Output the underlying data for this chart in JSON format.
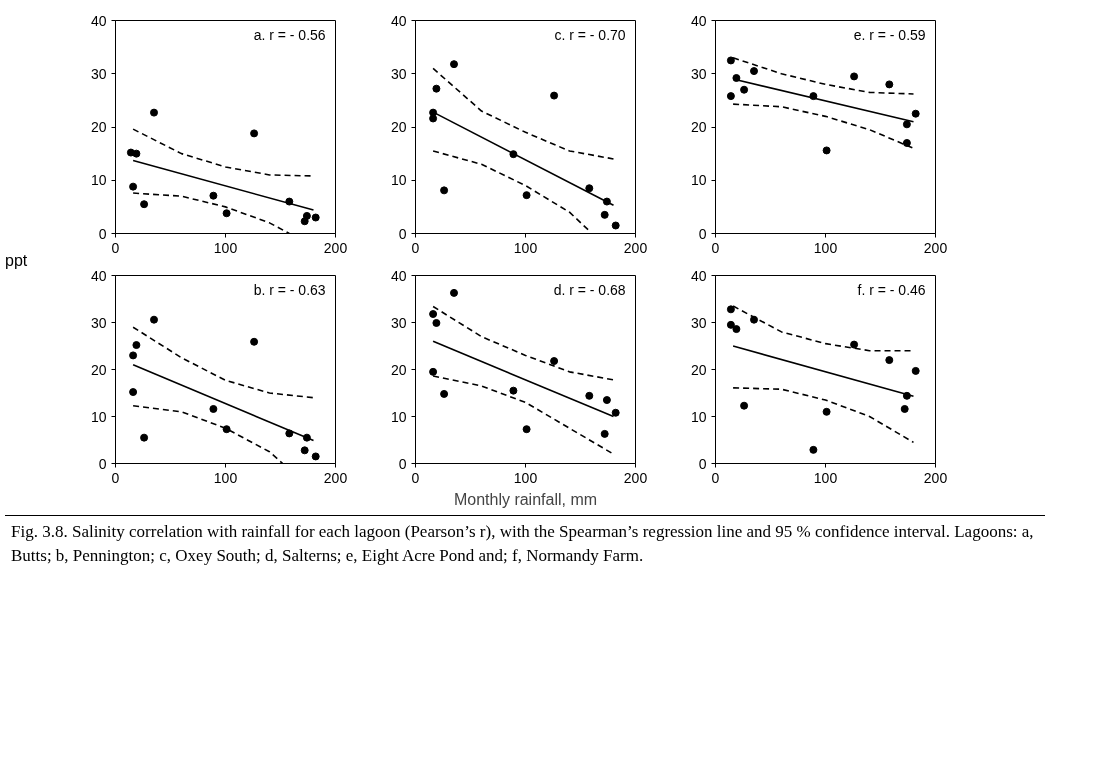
{
  "chart_data": [
    {
      "type": "scatter",
      "ylabel": "ppt",
      "annotations": [
        "a.  r = - 0.56",
        "Fig. 3.8.  Salinity correlation with rainfall for each lagoon (Pearson’s r), with the Spearman’s regression line and 95 % confidence interval.  Lagoons:  a, Butts; b, Pennington; c, Oxey South; d, Salterns; e, Eight Acre Pond and; f, Normandy Farm."
      ],
      "xlim": [
        0,
        200
      ],
      "xticks": [
        0,
        100,
        200
      ],
      "ylim": [
        0,
        40
      ],
      "yticks": [
        0,
        10,
        20,
        30,
        40
      ],
      "grid": false,
      "x": [
        14,
        19,
        16,
        26,
        35,
        89,
        101,
        126,
        158,
        174,
        172,
        182
      ],
      "series": [
        {
          "marker": "circle",
          "color": "#000000",
          "values": [
            15.2,
            15,
            8.8,
            5.5,
            22.7,
            7.1,
            3.8,
            18.8,
            6,
            3.3,
            2.3,
            3
          ]
        },
        {
          "type": "line",
          "color": "#000000",
          "line_style": "solid",
          "x": [
            16,
            180
          ],
          "values": [
            13.7,
            4.4
          ]
        },
        {
          "type": "line",
          "color": "#000000",
          "line_style": "dashed",
          "x": [
            16,
            60,
            100,
            140,
            180
          ],
          "values": [
            19.6,
            15,
            12.5,
            11,
            10.8
          ]
        },
        {
          "type": "line",
          "color": "#000000",
          "line_style": "dashed",
          "x": [
            16,
            60,
            100,
            140,
            158
          ],
          "values": [
            7.6,
            7,
            5,
            2,
            0
          ]
        }
      ]
    },
    {
      "type": "scatter",
      "annotations": [
        "c.  r = - 0.70"
      ],
      "xlim": [
        0,
        200
      ],
      "xticks": [
        0,
        100,
        200
      ],
      "ylim": [
        0,
        40
      ],
      "yticks": [
        0,
        10,
        20,
        30,
        40
      ],
      "grid": false,
      "x": [
        16,
        16,
        19,
        26,
        35,
        89,
        101,
        126,
        158,
        174,
        172,
        182
      ],
      "series": [
        {
          "marker": "circle",
          "color": "#000000",
          "values": [
            22.7,
            21.6,
            27.2,
            8.1,
            31.8,
            14.9,
            7.2,
            25.9,
            8.5,
            6,
            3.5,
            1.5
          ]
        },
        {
          "type": "line",
          "color": "#000000",
          "line_style": "solid",
          "x": [
            16,
            180
          ],
          "values": [
            22.8,
            5.3
          ]
        },
        {
          "type": "line",
          "color": "#000000",
          "line_style": "dashed",
          "x": [
            16,
            60,
            100,
            140,
            180
          ],
          "values": [
            31,
            23,
            19,
            15.5,
            14
          ]
        },
        {
          "type": "line",
          "color": "#000000",
          "line_style": "dashed",
          "x": [
            16,
            60,
            100,
            140,
            158
          ],
          "values": [
            15.5,
            13,
            9,
            4,
            0.5
          ]
        }
      ]
    },
    {
      "type": "scatter",
      "annotations": [
        "e.  r = - 0.59"
      ],
      "xlim": [
        0,
        200
      ],
      "xticks": [
        0,
        100,
        200
      ],
      "ylim": [
        0,
        40
      ],
      "yticks": [
        0,
        10,
        20,
        30,
        40
      ],
      "grid": false,
      "x": [
        14,
        14,
        19,
        26,
        35,
        89,
        101,
        126,
        158,
        174,
        174,
        182
      ],
      "series": [
        {
          "marker": "circle",
          "color": "#000000",
          "values": [
            32.5,
            25.8,
            29.2,
            27,
            30.5,
            25.8,
            15.6,
            29.5,
            28,
            20.5,
            17,
            22.5
          ]
        },
        {
          "type": "line",
          "color": "#000000",
          "line_style": "solid",
          "x": [
            16,
            180
          ],
          "values": [
            29,
            21
          ]
        },
        {
          "type": "line",
          "color": "#000000",
          "line_style": "dashed",
          "x": [
            16,
            60,
            100,
            140,
            180
          ],
          "values": [
            33,
            30,
            28,
            26.5,
            26.2
          ]
        },
        {
          "type": "line",
          "color": "#000000",
          "line_style": "dashed",
          "x": [
            16,
            60,
            100,
            140,
            180
          ],
          "values": [
            24.3,
            23.8,
            22,
            19.5,
            16
          ]
        }
      ]
    },
    {
      "type": "scatter",
      "annotations": [
        "b.  r = - 0.63"
      ],
      "xlim": [
        0,
        200
      ],
      "xticks": [
        0,
        100,
        200
      ],
      "ylim": [
        0,
        40
      ],
      "yticks": [
        0,
        10,
        20,
        30,
        40
      ],
      "grid": false,
      "x": [
        16,
        19,
        16,
        26,
        35,
        89,
        101,
        126,
        158,
        174,
        172,
        182
      ],
      "series": [
        {
          "marker": "circle",
          "color": "#000000",
          "values": [
            23,
            25.2,
            15.2,
            5.5,
            30.6,
            11.6,
            7.3,
            25.9,
            6.4,
            5.5,
            2.8,
            1.5
          ]
        },
        {
          "type": "line",
          "color": "#000000",
          "line_style": "solid",
          "x": [
            16,
            180
          ],
          "values": [
            21,
            4.9
          ]
        },
        {
          "type": "line",
          "color": "#000000",
          "line_style": "dashed",
          "x": [
            16,
            60,
            100,
            140,
            180
          ],
          "values": [
            29,
            22.5,
            17.7,
            15,
            14
          ]
        },
        {
          "type": "line",
          "color": "#000000",
          "line_style": "dashed",
          "x": [
            16,
            60,
            100,
            140,
            152
          ],
          "values": [
            12.3,
            11,
            7.5,
            2.5,
            0
          ]
        }
      ]
    },
    {
      "type": "scatter",
      "xlabel": "Monthly rainfall, mm",
      "annotations": [
        "d.  r = - 0.68"
      ],
      "xlim": [
        0,
        200
      ],
      "xticks": [
        0,
        100,
        200
      ],
      "ylim": [
        0,
        40
      ],
      "yticks": [
        0,
        10,
        20,
        30,
        40
      ],
      "grid": false,
      "x": [
        16,
        19,
        16,
        26,
        35,
        89,
        101,
        126,
        158,
        174,
        172,
        182
      ],
      "series": [
        {
          "marker": "circle",
          "color": "#000000",
          "values": [
            31.8,
            29.9,
            19.5,
            14.8,
            36.3,
            15.5,
            7.3,
            21.8,
            14.4,
            13.5,
            6.3,
            10.8
          ]
        },
        {
          "type": "line",
          "color": "#000000",
          "line_style": "solid",
          "x": [
            16,
            180
          ],
          "values": [
            26,
            10
          ]
        },
        {
          "type": "line",
          "color": "#000000",
          "line_style": "dashed",
          "x": [
            16,
            60,
            100,
            140,
            180
          ],
          "values": [
            33.4,
            27,
            23,
            19.5,
            17.8
          ]
        },
        {
          "type": "line",
          "color": "#000000",
          "line_style": "dashed",
          "x": [
            16,
            60,
            100,
            140,
            180
          ],
          "values": [
            18.6,
            16.5,
            13,
            7.5,
            2
          ]
        }
      ]
    },
    {
      "type": "scatter",
      "annotations": [
        "f.  r = - 0.46"
      ],
      "xlim": [
        0,
        200
      ],
      "xticks": [
        0,
        100,
        200
      ],
      "ylim": [
        0,
        40
      ],
      "yticks": [
        0,
        10,
        20,
        30,
        40
      ],
      "grid": false,
      "x": [
        14,
        14,
        19,
        26,
        35,
        89,
        101,
        126,
        158,
        174,
        172,
        182
      ],
      "series": [
        {
          "marker": "circle",
          "color": "#000000",
          "values": [
            32.8,
            29.5,
            28.6,
            12.3,
            30.6,
            2.9,
            11,
            25.3,
            22,
            14.4,
            11.6,
            19.7
          ]
        },
        {
          "type": "line",
          "color": "#000000",
          "line_style": "solid",
          "x": [
            16,
            180
          ],
          "values": [
            25,
            14.3
          ]
        },
        {
          "type": "line",
          "color": "#000000",
          "line_style": "dashed",
          "x": [
            16,
            60,
            100,
            140,
            180
          ],
          "values": [
            33.5,
            28,
            25.5,
            24,
            24
          ]
        },
        {
          "type": "line",
          "color": "#000000",
          "line_style": "dashed",
          "x": [
            16,
            60,
            100,
            140,
            180
          ],
          "values": [
            16.1,
            15.8,
            13.5,
            10,
            4.5
          ]
        }
      ]
    }
  ]
}
